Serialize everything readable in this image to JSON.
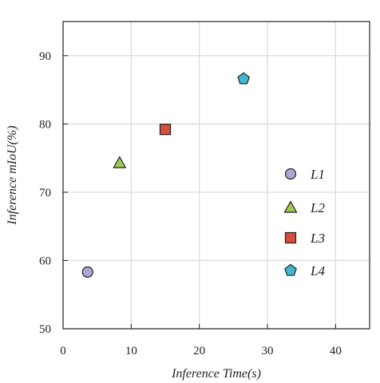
{
  "chart_data": {
    "type": "scatter",
    "xlabel": "Inference Time(s)",
    "ylabel": "Inference mIoU(%)",
    "xlim": [
      0,
      45
    ],
    "ylim": [
      50,
      95
    ],
    "xticks": [
      "0",
      "10",
      "20",
      "30",
      "40"
    ],
    "yticks": [
      "50",
      "60",
      "70",
      "80",
      "90"
    ],
    "grid": true,
    "legend_position": "right",
    "series": [
      {
        "name": "L1",
        "x": 3.6,
        "y": 58.3,
        "marker": "circle",
        "color": "#b1a5d6"
      },
      {
        "name": "L2",
        "x": 8.3,
        "y": 74.3,
        "marker": "triangle",
        "color": "#9ecb52"
      },
      {
        "name": "L3",
        "x": 15.0,
        "y": 79.2,
        "marker": "square",
        "color": "#d94b3b"
      },
      {
        "name": "L4",
        "x": 26.5,
        "y": 86.6,
        "marker": "pentagon",
        "color": "#42b7cf"
      }
    ]
  }
}
